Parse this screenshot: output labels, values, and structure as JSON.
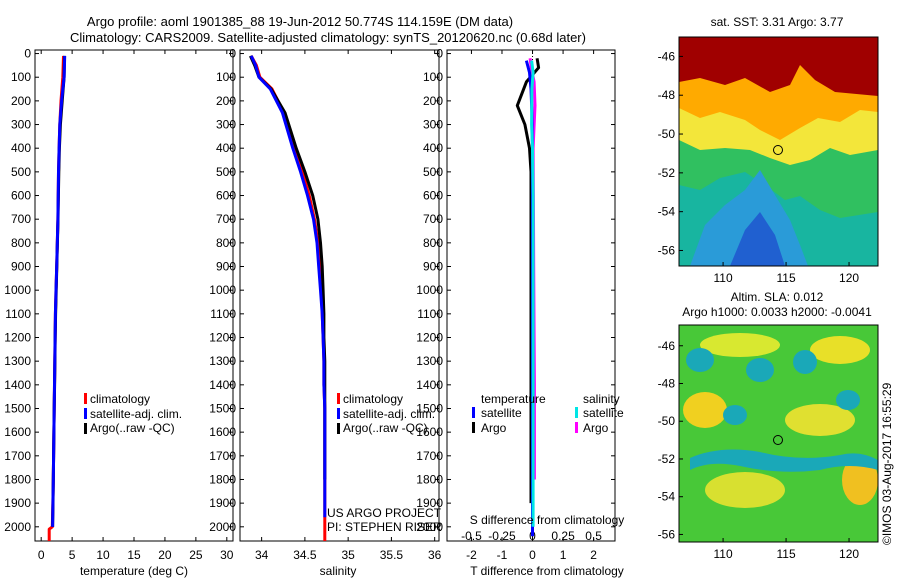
{
  "title_line1": "Argo profile: aoml 1901385_88 19-Jun-2012 50.774S 114.159E (DM data)",
  "title_line2": "Climatology: CARS2009. Satellite-adjusted climatology: synTS_20120620.nc (0.68d later)",
  "colors": {
    "climatology": "#ff0000",
    "satellite": "#0000ff",
    "argo": "#000000",
    "sat_salinity": "#00e5e5",
    "argo_salinity": "#ff00ff"
  },
  "panels": {
    "temp": {
      "xlabel": "temperature (deg C)",
      "xticks": [
        "0",
        "5",
        "10",
        "15",
        "20",
        "25",
        "30"
      ],
      "legend": [
        "climatology",
        "satellite-adj. clim.",
        "Argo(..raw -QC)"
      ]
    },
    "sal": {
      "xlabel": "salinity",
      "xticks": [
        "34",
        "34.5",
        "35",
        "35.5",
        "36"
      ],
      "legend": [
        "climatology",
        "satellite-adj. clim.",
        "Argo(..raw -QC)"
      ],
      "project_line1": "US ARGO PROJECT",
      "project_line2": "PI: STEPHEN RISER"
    },
    "diff": {
      "xlabel": "T difference from climatology",
      "xlabel_top": "S difference from climatology",
      "xticks_t": [
        "-2",
        "-1",
        "0",
        "1",
        "2"
      ],
      "xticks_s": [
        "-0.5",
        "-0.25",
        "0",
        "0.25",
        "0.5"
      ],
      "legend_temp_title": "temperature",
      "legend_sal_title": "salinity",
      "legend_temp": [
        "satellite",
        "Argo"
      ],
      "legend_sal": [
        "satellite",
        "Argo"
      ]
    },
    "depth_ticks": [
      "0",
      "100",
      "200",
      "300",
      "400",
      "500",
      "600",
      "700",
      "800",
      "900",
      "1000",
      "1100",
      "1200",
      "1300",
      "1400",
      "1500",
      "1600",
      "1700",
      "1800",
      "1900",
      "2000"
    ]
  },
  "maps": {
    "sst_title": "sat. SST: 3.31  Argo: 3.77",
    "sla_title1": "Altim. SLA: 0.012",
    "sla_title2": "Argo h1000: 0.0033 h2000: -0.0041",
    "lat_ticks": [
      "-46",
      "-48",
      "-50",
      "-52",
      "-54",
      "-56"
    ],
    "lon_ticks": [
      "110",
      "115",
      "120"
    ],
    "footer": "©IMOS 03-Aug-2017 16:55:29"
  },
  "chart_data": [
    {
      "type": "line",
      "title": "",
      "xlabel": "temperature (deg C)",
      "ylabel": "",
      "xlim": [
        -1,
        31
      ],
      "ylim": [
        2060,
        0
      ],
      "series": [
        {
          "name": "climatology",
          "x": [
            3.6,
            3.5,
            3.2,
            3.0,
            2.9,
            2.8,
            2.75,
            2.7,
            2.6,
            2.5,
            2.4,
            2.3,
            2.25,
            2.2,
            2.15,
            2.1,
            2.05,
            2.0,
            1.95,
            1.9,
            1.8,
            1.3,
            1.3
          ],
          "y": [
            10,
            100,
            200,
            300,
            400,
            500,
            600,
            700,
            800,
            900,
            1000,
            1100,
            1200,
            1300,
            1400,
            1500,
            1600,
            1700,
            1800,
            1900,
            2000,
            2010,
            2060
          ]
        },
        {
          "name": "satellite-adj. clim.",
          "x": [
            3.8,
            3.7,
            3.3,
            3.0,
            2.9,
            2.8,
            2.75,
            2.7,
            2.6,
            2.5,
            2.4,
            2.3,
            2.25,
            2.2,
            2.15,
            2.1,
            2.05,
            2.0,
            1.95,
            1.9,
            1.85
          ],
          "y": [
            10,
            100,
            200,
            300,
            400,
            500,
            600,
            700,
            800,
            900,
            1000,
            1100,
            1200,
            1300,
            1400,
            1500,
            1600,
            1700,
            1800,
            1900,
            2000
          ]
        },
        {
          "name": "Argo(..raw -QC)",
          "x": [
            3.77,
            3.7,
            3.4,
            3.1,
            2.95,
            2.85,
            2.78,
            2.72,
            2.62,
            2.52,
            2.42,
            2.33,
            2.26,
            2.21,
            2.16,
            2.11,
            2.06,
            2.01,
            1.96,
            1.91,
            1.85
          ],
          "y": [
            10,
            100,
            200,
            300,
            400,
            500,
            600,
            700,
            800,
            900,
            1000,
            1100,
            1200,
            1300,
            1400,
            1500,
            1600,
            1700,
            1800,
            1900,
            2000
          ]
        }
      ]
    },
    {
      "type": "line",
      "title": "",
      "xlabel": "salinity",
      "ylabel": "",
      "xlim": [
        33.75,
        36.05
      ],
      "ylim": [
        2060,
        0
      ],
      "series": [
        {
          "name": "climatology",
          "x": [
            33.88,
            33.94,
            33.98,
            34.12,
            34.26,
            34.38,
            34.47,
            34.55,
            34.61,
            34.65,
            34.67,
            34.69,
            34.7,
            34.71,
            34.72,
            34.72,
            34.73,
            34.73,
            34.73,
            34.73,
            34.73,
            34.73
          ],
          "y": [
            10,
            50,
            100,
            150,
            250,
            400,
            500,
            600,
            700,
            800,
            900,
            1000,
            1100,
            1200,
            1300,
            1400,
            1500,
            1600,
            1700,
            1800,
            1900,
            2060
          ]
        },
        {
          "name": "satellite-adj. clim.",
          "x": [
            33.88,
            33.93,
            33.97,
            34.1,
            34.24,
            34.36,
            34.45,
            34.53,
            34.6,
            34.64,
            34.66,
            34.68,
            34.7,
            34.71,
            34.72,
            34.72,
            34.73,
            34.73,
            34.73,
            34.73,
            34.73
          ],
          "y": [
            10,
            50,
            100,
            150,
            250,
            400,
            500,
            600,
            700,
            800,
            900,
            1000,
            1100,
            1200,
            1300,
            1400,
            1500,
            1600,
            1700,
            1800,
            1960
          ]
        },
        {
          "name": "Argo(..raw -QC)",
          "x": [
            33.87,
            33.92,
            33.97,
            34.11,
            34.27,
            34.4,
            34.5,
            34.59,
            34.65,
            34.68,
            34.7,
            34.71,
            34.72,
            34.72,
            34.73,
            34.73,
            34.73,
            34.73,
            34.73,
            34.73
          ],
          "y": [
            10,
            50,
            100,
            150,
            250,
            400,
            500,
            600,
            700,
            800,
            900,
            1000,
            1100,
            1200,
            1300,
            1400,
            1500,
            1600,
            1700,
            1800
          ]
        }
      ]
    },
    {
      "type": "line",
      "title": "",
      "xlabel": "T difference from climatology",
      "ylabel": "",
      "xlim": [
        -2.8,
        2.7
      ],
      "ylim": [
        2060,
        0
      ],
      "series": [
        {
          "name": "temperature satellite",
          "x": [
            -0.2,
            -0.1,
            -0.05,
            -0.02,
            0,
            0,
            0,
            0,
            0,
            0,
            0,
            0,
            0,
            0,
            0,
            0,
            0
          ],
          "y": [
            30,
            80,
            150,
            250,
            400,
            600,
            800,
            1000,
            1200,
            1400,
            1500,
            1600,
            1700,
            1800,
            1900,
            2000,
            2040
          ]
        },
        {
          "name": "temperature Argo",
          "x": [
            0.15,
            0.2,
            -0.2,
            -0.5,
            -0.25,
            -0.1,
            -0.05,
            -0.05,
            -0.05,
            -0.05,
            -0.05,
            -0.05,
            -0.05,
            -0.05,
            -0.05,
            -0.05
          ],
          "y": [
            20,
            60,
            120,
            220,
            300,
            400,
            500,
            700,
            900,
            1100,
            1300,
            1500,
            1600,
            1700,
            1800,
            1900
          ]
        },
        {
          "name": "salinity satellite",
          "x": [
            -0.03,
            0.02,
            -0.02,
            -0.03,
            0,
            0.02,
            0.02,
            0.02,
            0.02,
            0.02,
            0.02,
            0.02,
            0.02
          ],
          "y": [
            30,
            80,
            150,
            300,
            400,
            600,
            800,
            1000,
            1200,
            1400,
            1600,
            1800,
            2000
          ]
        },
        {
          "name": "salinity Argo",
          "x": [
            -0.08,
            -0.04,
            0.05,
            0.08,
            0.02,
            0.03,
            0.04,
            0.05,
            0.06,
            0.06
          ],
          "y": [
            20,
            60,
            120,
            220,
            400,
            600,
            900,
            1200,
            1400,
            1800
          ]
        }
      ]
    }
  ]
}
